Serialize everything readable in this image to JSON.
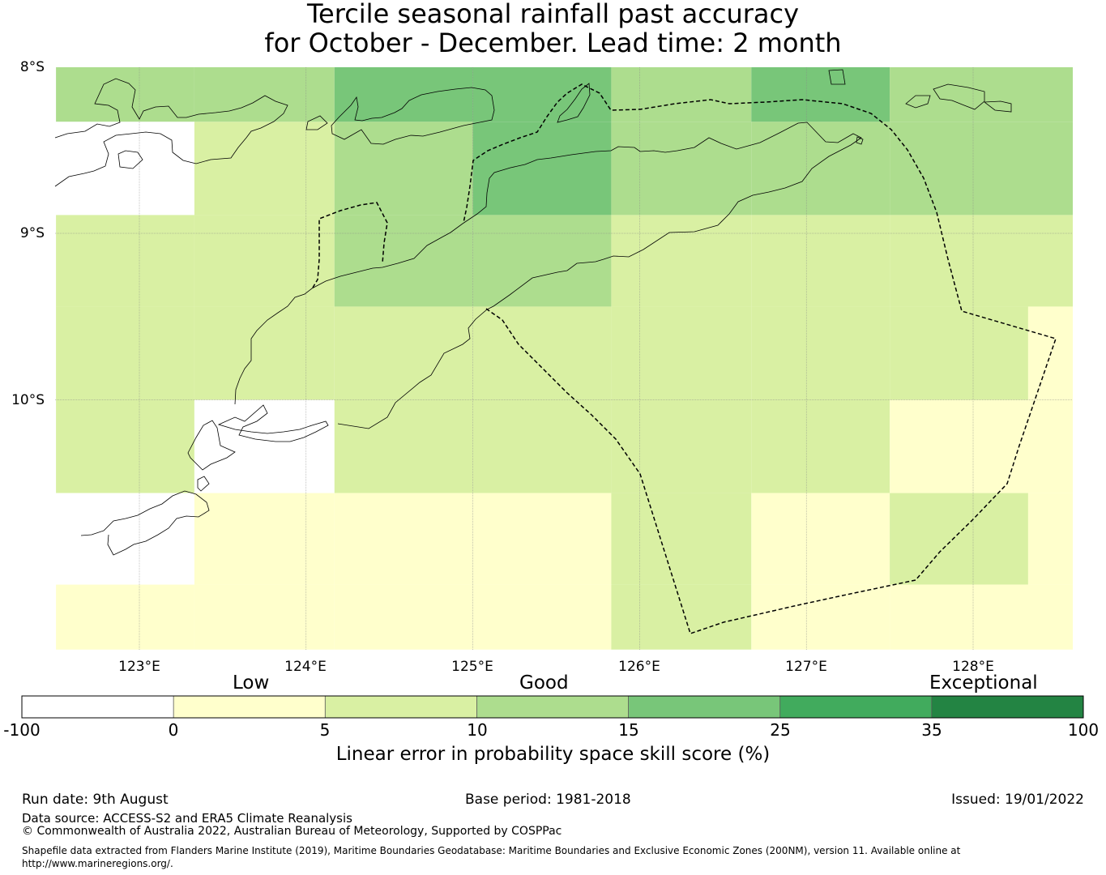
{
  "title": {
    "line1": "Tercile seasonal rainfall past accuracy",
    "line2": "for October - December. Lead time: 2 month"
  },
  "map": {
    "latitude_labels": [
      "8°S",
      "9°S",
      "10°S"
    ],
    "longitude_labels": [
      "123°E",
      "124°E",
      "125°E",
      "126°E",
      "127°E",
      "128°E"
    ],
    "lon_range": [
      122.5,
      128.6
    ],
    "lat_range": [
      -8.0,
      -11.5
    ],
    "skill_grid_cells": [
      {
        "lon": [
          122.5,
          123.33
        ],
        "lat": [
          -8.0,
          -8.33
        ],
        "skill": 12
      },
      {
        "lon": [
          123.33,
          124.17
        ],
        "lat": [
          -8.0,
          -8.33
        ],
        "skill": 12
      },
      {
        "lon": [
          124.17,
          125.0
        ],
        "lat": [
          -8.0,
          -8.33
        ],
        "skill": 17
      },
      {
        "lon": [
          125.0,
          125.83
        ],
        "lat": [
          -8.0,
          -8.33
        ],
        "skill": 17
      },
      {
        "lon": [
          125.83,
          126.67
        ],
        "lat": [
          -8.0,
          -8.33
        ],
        "skill": 12
      },
      {
        "lon": [
          126.67,
          127.5
        ],
        "lat": [
          -8.0,
          -8.33
        ],
        "skill": 17
      },
      {
        "lon": [
          127.5,
          128.6
        ],
        "lat": [
          -8.0,
          -8.33
        ],
        "skill": 12
      },
      {
        "lon": [
          122.5,
          123.33
        ],
        "lat": [
          -8.33,
          -8.89
        ],
        "skill": -5
      },
      {
        "lon": [
          123.33,
          124.17
        ],
        "lat": [
          -8.33,
          -8.89
        ],
        "skill": 7
      },
      {
        "lon": [
          124.17,
          125.0
        ],
        "lat": [
          -8.33,
          -8.89
        ],
        "skill": 12
      },
      {
        "lon": [
          125.0,
          125.83
        ],
        "lat": [
          -8.33,
          -8.89
        ],
        "skill": 17
      },
      {
        "lon": [
          125.83,
          126.67
        ],
        "lat": [
          -8.33,
          -8.89
        ],
        "skill": 12
      },
      {
        "lon": [
          126.67,
          127.5
        ],
        "lat": [
          -8.33,
          -8.89
        ],
        "skill": 12
      },
      {
        "lon": [
          127.5,
          128.6
        ],
        "lat": [
          -8.33,
          -8.89
        ],
        "skill": 12
      },
      {
        "lon": [
          122.5,
          123.33
        ],
        "lat": [
          -8.89,
          -9.44
        ],
        "skill": 7
      },
      {
        "lon": [
          123.33,
          124.17
        ],
        "lat": [
          -8.89,
          -9.44
        ],
        "skill": 7
      },
      {
        "lon": [
          124.17,
          125.0
        ],
        "lat": [
          -8.89,
          -9.44
        ],
        "skill": 12
      },
      {
        "lon": [
          125.0,
          125.83
        ],
        "lat": [
          -8.89,
          -9.44
        ],
        "skill": 12
      },
      {
        "lon": [
          125.83,
          126.67
        ],
        "lat": [
          -8.89,
          -9.44
        ],
        "skill": 7
      },
      {
        "lon": [
          126.67,
          127.5
        ],
        "lat": [
          -8.89,
          -9.44
        ],
        "skill": 7
      },
      {
        "lon": [
          127.5,
          128.6
        ],
        "lat": [
          -8.89,
          -9.44
        ],
        "skill": 7
      },
      {
        "lon": [
          122.5,
          123.33
        ],
        "lat": [
          -9.44,
          -10.0
        ],
        "skill": 7
      },
      {
        "lon": [
          123.33,
          124.17
        ],
        "lat": [
          -9.44,
          -10.0
        ],
        "skill": 7
      },
      {
        "lon": [
          124.17,
          125.0
        ],
        "lat": [
          -9.44,
          -10.0
        ],
        "skill": 7
      },
      {
        "lon": [
          125.0,
          125.83
        ],
        "lat": [
          -9.44,
          -10.0
        ],
        "skill": 7
      },
      {
        "lon": [
          125.83,
          126.67
        ],
        "lat": [
          -9.44,
          -10.0
        ],
        "skill": 7
      },
      {
        "lon": [
          126.67,
          127.5
        ],
        "lat": [
          -9.44,
          -10.0
        ],
        "skill": 7
      },
      {
        "lon": [
          127.5,
          128.33
        ],
        "lat": [
          -9.44,
          -10.0
        ],
        "skill": 7
      },
      {
        "lon": [
          128.33,
          128.6
        ],
        "lat": [
          -9.44,
          -10.0
        ],
        "skill": 2
      },
      {
        "lon": [
          122.5,
          123.33
        ],
        "lat": [
          -10.0,
          -10.56
        ],
        "skill": 7
      },
      {
        "lon": [
          123.33,
          124.17
        ],
        "lat": [
          -10.0,
          -10.56
        ],
        "skill": -5
      },
      {
        "lon": [
          124.17,
          125.0
        ],
        "lat": [
          -10.0,
          -10.56
        ],
        "skill": 7
      },
      {
        "lon": [
          125.0,
          125.83
        ],
        "lat": [
          -10.0,
          -10.56
        ],
        "skill": 7
      },
      {
        "lon": [
          125.83,
          126.67
        ],
        "lat": [
          -10.0,
          -10.56
        ],
        "skill": 7
      },
      {
        "lon": [
          126.67,
          127.5
        ],
        "lat": [
          -10.0,
          -10.56
        ],
        "skill": 7
      },
      {
        "lon": [
          127.5,
          128.6
        ],
        "lat": [
          -10.0,
          -10.56
        ],
        "skill": 2
      },
      {
        "lon": [
          122.5,
          123.33
        ],
        "lat": [
          -10.56,
          -11.11
        ],
        "skill": -5
      },
      {
        "lon": [
          123.33,
          124.17
        ],
        "lat": [
          -10.56,
          -11.11
        ],
        "skill": 2
      },
      {
        "lon": [
          124.17,
          125.0
        ],
        "lat": [
          -10.56,
          -11.11
        ],
        "skill": 2
      },
      {
        "lon": [
          125.0,
          125.83
        ],
        "lat": [
          -10.56,
          -11.11
        ],
        "skill": 2
      },
      {
        "lon": [
          125.83,
          126.67
        ],
        "lat": [
          -10.56,
          -11.11
        ],
        "skill": 7
      },
      {
        "lon": [
          126.67,
          127.5
        ],
        "lat": [
          -10.56,
          -11.11
        ],
        "skill": 2
      },
      {
        "lon": [
          127.5,
          128.33
        ],
        "lat": [
          -10.56,
          -11.11
        ],
        "skill": 7
      },
      {
        "lon": [
          128.33,
          128.6
        ],
        "lat": [
          -10.56,
          -11.11
        ],
        "skill": 2
      },
      {
        "lon": [
          122.5,
          123.33
        ],
        "lat": [
          -11.11,
          -11.5
        ],
        "skill": 2
      },
      {
        "lon": [
          123.33,
          124.17
        ],
        "lat": [
          -11.11,
          -11.5
        ],
        "skill": 2
      },
      {
        "lon": [
          124.17,
          125.0
        ],
        "lat": [
          -11.11,
          -11.5
        ],
        "skill": 2
      },
      {
        "lon": [
          125.0,
          125.83
        ],
        "lat": [
          -11.11,
          -11.5
        ],
        "skill": 2
      },
      {
        "lon": [
          125.83,
          126.67
        ],
        "lat": [
          -11.11,
          -11.5
        ],
        "skill": 7
      },
      {
        "lon": [
          126.67,
          127.5
        ],
        "lat": [
          -11.11,
          -11.5
        ],
        "skill": 2
      },
      {
        "lon": [
          127.5,
          128.6
        ],
        "lat": [
          -11.11,
          -11.5
        ],
        "skill": 2
      }
    ]
  },
  "colorbar": {
    "category_labels": {
      "low": "Low",
      "good": "Good",
      "exceptional": "Exceptional"
    },
    "bins": [
      {
        "from": -100,
        "to": 0,
        "color": "#ffffff"
      },
      {
        "from": 0,
        "to": 5,
        "color": "#ffffcc"
      },
      {
        "from": 5,
        "to": 10,
        "color": "#d9f0a3"
      },
      {
        "from": 10,
        "to": 15,
        "color": "#addd8e"
      },
      {
        "from": 15,
        "to": 25,
        "color": "#78c679"
      },
      {
        "from": 25,
        "to": 35,
        "color": "#41ab5d"
      },
      {
        "from": 35,
        "to": 100,
        "color": "#238443"
      }
    ],
    "tick_labels": [
      "-100",
      "0",
      "5",
      "10",
      "15",
      "25",
      "35",
      "100"
    ],
    "title": "Linear error in probability space skill score (%)"
  },
  "footer": {
    "run_date": "Run date: 9th August",
    "base_period": "Base period: 1981-2018",
    "issued": "Issued: 19/01/2022",
    "data_source": "Data source: ACCESS-S2 and ERA5 Climate Reanalysis",
    "copyright": "© Commonwealth of Australia 2022, Australian Bureau of Meteorology, Supported by COSPPac",
    "shapefile_line1": "Shapefile data extracted from Flanders Marine Institute (2019), Maritime Boundaries Geodatabase: Maritime Boundaries and Exclusive Economic Zones (200NM), version 11. Available online at",
    "shapefile_line2": "http://www.marineregions.org/."
  }
}
